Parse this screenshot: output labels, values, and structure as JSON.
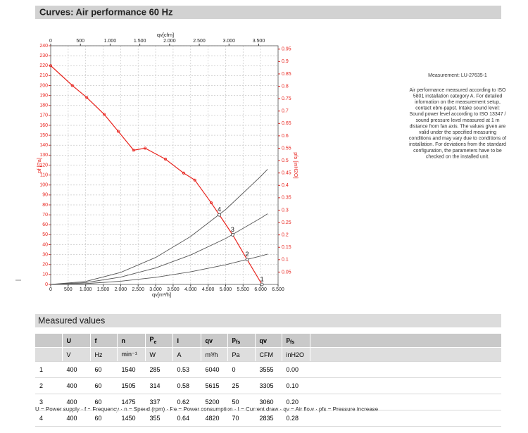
{
  "header": {
    "title": "Curves: Air performance 60 Hz"
  },
  "chart": {
    "xlabel": "qv[m³/h]",
    "x2label": "qv[cfm]",
    "ylabel": "pf [Pa]",
    "y2label": "pfs [inH2O]",
    "xlim": [
      0,
      6500
    ],
    "xticks": [
      0,
      500,
      {
        "value": 1000,
        "label": "1.000"
      },
      {
        "value": 1500,
        "label": "1.500"
      },
      {
        "value": 2000,
        "label": "2.000"
      },
      {
        "value": 2500,
        "label": "2.500"
      },
      {
        "value": 3000,
        "label": "3.000"
      },
      {
        "value": 3500,
        "label": "3.500"
      },
      {
        "value": 4000,
        "label": "4.000"
      },
      {
        "value": 4500,
        "label": "4.500"
      },
      {
        "value": 5000,
        "label": "5.000"
      },
      {
        "value": 5500,
        "label": "5.500"
      },
      {
        "value": 6000,
        "label": "6.000"
      },
      {
        "value": 6500,
        "label": "6.500"
      }
    ],
    "x2lim": [
      0,
      3826
    ],
    "x2ticks": [
      0,
      500,
      {
        "value": 1000,
        "label": "1.000"
      },
      {
        "value": 1500,
        "label": "1.500"
      },
      {
        "value": 2000,
        "label": "2.000"
      },
      {
        "value": 2500,
        "label": "2.500"
      },
      {
        "value": 3000,
        "label": "3.000"
      },
      {
        "value": 3500,
        "label": "3.500"
      }
    ],
    "ylim": [
      0,
      240
    ],
    "yticks": [
      0,
      10,
      20,
      30,
      40,
      50,
      60,
      70,
      80,
      90,
      100,
      110,
      120,
      130,
      140,
      150,
      160,
      170,
      180,
      190,
      200,
      210,
      220,
      230,
      240
    ],
    "y2lim": [
      0,
      0.9636
    ],
    "y2ticks": [
      0.05,
      0.1,
      0.15,
      0.2,
      0.25,
      0.3,
      0.35,
      0.4,
      0.45,
      0.5,
      0.55,
      0.6,
      0.65,
      0.7,
      0.75,
      0.8,
      0.85,
      0.9,
      0.95
    ],
    "grid": true,
    "curve_color": "#e8251f",
    "system_color": "#555555",
    "curve": {
      "x": [
        0,
        620,
        1030,
        1530,
        1930,
        2370,
        2700,
        3280,
        3800,
        4120,
        4590,
        4820,
        5200,
        5615,
        6040
      ],
      "y": [
        220,
        200,
        188,
        171,
        154,
        135,
        137,
        126,
        112,
        105,
        82,
        70,
        50,
        25,
        0
      ]
    },
    "system_curves": [
      {
        "x": [
          0,
          1000,
          2000,
          3000,
          4000,
          5000,
          6000,
          6200
        ],
        "y": [
          0,
          3.0,
          12.1,
          27.1,
          48.2,
          75.3,
          108.5,
          115.8
        ]
      },
      {
        "x": [
          0,
          1000,
          2000,
          3000,
          4000,
          5000,
          6000,
          6200
        ],
        "y": [
          0,
          1.8,
          7.4,
          16.6,
          29.6,
          46.2,
          66.6,
          71.1
        ]
      },
      {
        "x": [
          0,
          1000,
          2000,
          3000,
          4000,
          5000,
          6000,
          6200
        ],
        "y": [
          0,
          0.8,
          3.2,
          7.1,
          12.7,
          19.8,
          28.5,
          30.5
        ]
      }
    ],
    "operating_points": [
      {
        "label": "4",
        "x": 4820,
        "y": 70
      },
      {
        "label": "3",
        "x": 5200,
        "y": 50
      },
      {
        "label": "2",
        "x": 5615,
        "y": 25
      },
      {
        "label": "1",
        "x": 6040,
        "y": 0
      }
    ]
  },
  "info": {
    "measurement": "Measurement: LU-27635-1",
    "lines": [
      "Air performance measured according to ISO",
      "5801 installation category A. For detailed",
      "information on the measurement setup,",
      "contact ebm-papst. Intake sound level:",
      "Sound power level according to ISO 13347 /",
      "sound pressure level measured at 1 m",
      "distance from fan axis. The values given are",
      "valid under the specified measuring",
      "conditions and may vary due to conditions of",
      "installation. For deviations from the standard",
      "configuration, the parameters have to be",
      "checked on the installed unit."
    ]
  },
  "table": {
    "title": "Measured values",
    "header": [
      {
        "main": "U"
      },
      {
        "main": "f"
      },
      {
        "main": "n"
      },
      {
        "main": "P",
        "sub": "e"
      },
      {
        "main": "I"
      },
      {
        "main": "qv"
      },
      {
        "main": "p",
        "sub": "fs"
      },
      {
        "main": "qv"
      },
      {
        "main": "p",
        "sub": "fs"
      }
    ],
    "units": [
      "V",
      "Hz",
      "min⁻¹",
      "W",
      "A",
      "m³/h",
      "Pa",
      "CFM",
      "inH2O"
    ],
    "rows": [
      [
        "1",
        "400",
        "60",
        "1540",
        "285",
        "0.53",
        "6040",
        "0",
        "3555",
        "0.00"
      ],
      [
        "2",
        "400",
        "60",
        "1505",
        "314",
        "0.58",
        "5615",
        "25",
        "3305",
        "0.10"
      ],
      [
        "3",
        "400",
        "60",
        "1475",
        "337",
        "0.62",
        "5200",
        "50",
        "3060",
        "0.20"
      ],
      [
        "4",
        "400",
        "60",
        "1450",
        "355",
        "0.64",
        "4820",
        "70",
        "2835",
        "0.28"
      ]
    ],
    "footnote": "U = Power supply · f = Frequency · n = Speed (rpm) · Pe = Power consumption · I = Current draw · qv = Air flow · pfs = Pressure increase"
  }
}
